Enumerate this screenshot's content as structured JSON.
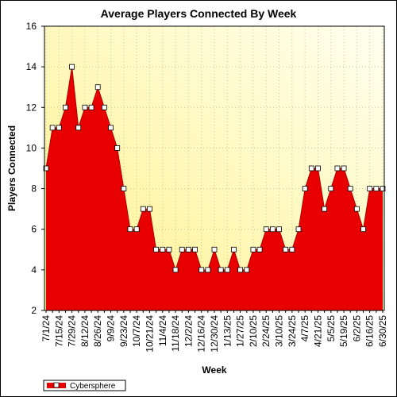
{
  "chart_data": {
    "type": "area",
    "title": "Average Players Connected By Week",
    "xlabel": "Week",
    "ylabel": "Players Connected",
    "ylim": [
      2,
      16
    ],
    "yticks": [
      2,
      4,
      6,
      8,
      10,
      12,
      14,
      16
    ],
    "x_tick_labels": [
      "7/1/24",
      "7/15/24",
      "7/29/24",
      "8/12/24",
      "8/26/24",
      "9/9/24",
      "9/23/24",
      "10/7/24",
      "10/21/24",
      "11/4/24",
      "11/18/24",
      "12/2/24",
      "12/16/24",
      "12/30/24",
      "1/13/25",
      "1/27/25",
      "2/10/25",
      "2/24/25",
      "3/10/25",
      "3/24/25",
      "4/7/25",
      "4/21/25",
      "5/5/25",
      "5/19/25",
      "6/2/25",
      "6/16/25",
      "6/30/25"
    ],
    "x_tick_step": 2,
    "grid": true,
    "legend_position": "bottom-left",
    "series": [
      {
        "name": "Cybersphere",
        "color": "#e80000",
        "values": [
          9,
          11,
          11,
          12,
          14,
          11,
          12,
          12,
          13,
          12,
          11,
          10,
          8,
          6,
          6,
          7,
          7,
          5,
          5,
          5,
          4,
          5,
          5,
          5,
          4,
          4,
          5,
          4,
          4,
          5,
          4,
          4,
          5,
          5,
          6,
          6,
          6,
          5,
          5,
          6,
          8,
          9,
          9,
          7,
          8,
          9,
          9,
          8,
          7,
          6,
          8,
          8,
          8
        ]
      }
    ]
  },
  "colors": {
    "plot_bg_left": "#fff28c",
    "plot_bg_right": "#fffff0",
    "fill": "#e80000",
    "grid": "#c8c8a0"
  }
}
